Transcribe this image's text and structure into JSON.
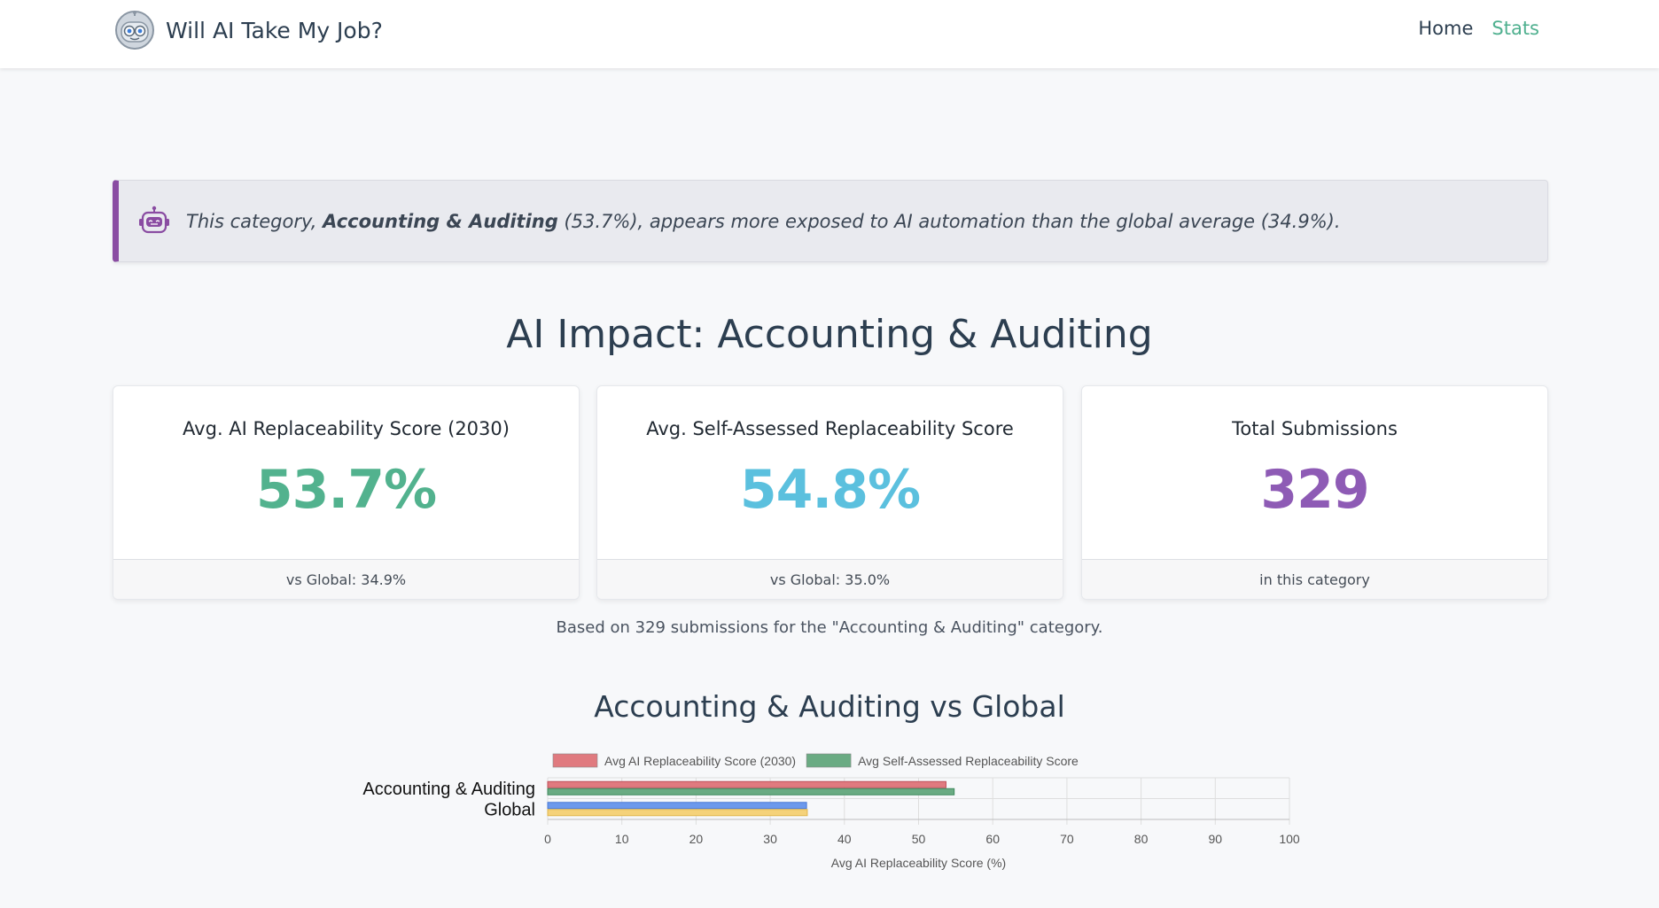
{
  "navbar": {
    "brand": "Will AI Take My Job?",
    "links": [
      "Home",
      "Stats"
    ],
    "active_link": "Stats"
  },
  "alert": {
    "prefix": "This category, ",
    "category": "Accounting & Auditing",
    "suffix": " (53.7%), appears more exposed to AI automation than the global average (34.9%).",
    "icon": "robot-icon",
    "accent_color": "#8a4ca2"
  },
  "page_title": "AI Impact: Accounting & Auditing",
  "cards": [
    {
      "title": "Avg. AI Replaceability Score (2030)",
      "value": "53.7%",
      "footer": "vs Global: 34.9%",
      "color": "#52b28e"
    },
    {
      "title": "Avg. Self-Assessed Replaceability Score",
      "value": "54.8%",
      "footer": "vs Global: 35.0%",
      "color": "#5bc0de"
    },
    {
      "title": "Total Submissions",
      "value": "329",
      "footer": "in this category",
      "color": "#8e5bb5"
    }
  ],
  "based_on": "Based on 329 submissions for the \"Accounting & Auditing\" category.",
  "chart_title": "Accounting & Auditing vs Global",
  "chart_data": {
    "type": "bar",
    "orientation": "horizontal",
    "categories": [
      "Accounting & Auditing",
      "Global"
    ],
    "legend": [
      {
        "label": "Avg AI Replaceability Score (2030)",
        "color": "#e07a7f"
      },
      {
        "label": "Avg Self-Assessed Replaceability Score",
        "color": "#6aab83"
      }
    ],
    "bars": [
      [
        {
          "value": 53.7,
          "fill": "#e07a7f",
          "stroke": "#c0505a"
        },
        {
          "value": 54.8,
          "fill": "#6aab83",
          "stroke": "#3f8a5e"
        }
      ],
      [
        {
          "value": 34.9,
          "fill": "#6c99ec",
          "stroke": "#4a7ad6"
        },
        {
          "value": 35.0,
          "fill": "#f5d27a",
          "stroke": "#e0b64c"
        }
      ]
    ],
    "xlabel": "Avg AI Replaceability Score (%)",
    "xlim": [
      0,
      100
    ],
    "xticks": [
      0,
      10,
      20,
      30,
      40,
      50,
      60,
      70,
      80,
      90,
      100
    ],
    "grid": true,
    "legend_position": "top"
  }
}
